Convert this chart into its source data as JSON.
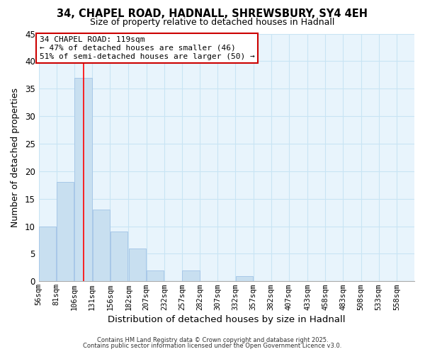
{
  "title_line1": "34, CHAPEL ROAD, HADNALL, SHREWSBURY, SY4 4EH",
  "title_line2": "Size of property relative to detached houses in Hadnall",
  "xlabel": "Distribution of detached houses by size in Hadnall",
  "ylabel": "Number of detached properties",
  "bin_labels": [
    "56sqm",
    "81sqm",
    "106sqm",
    "131sqm",
    "156sqm",
    "182sqm",
    "207sqm",
    "232sqm",
    "257sqm",
    "282sqm",
    "307sqm",
    "332sqm",
    "357sqm",
    "382sqm",
    "407sqm",
    "433sqm",
    "458sqm",
    "483sqm",
    "508sqm",
    "533sqm",
    "558sqm"
  ],
  "bin_edges": [
    56,
    81,
    106,
    131,
    156,
    182,
    207,
    232,
    257,
    282,
    307,
    332,
    357,
    382,
    407,
    433,
    458,
    483,
    508,
    533,
    558,
    583
  ],
  "bar_values": [
    10,
    18,
    37,
    13,
    9,
    6,
    2,
    0,
    2,
    0,
    0,
    1,
    0,
    0,
    0,
    0,
    0,
    0,
    0,
    0,
    0
  ],
  "bar_color": "#c8dff0",
  "bar_edge_color": "#a8c8e8",
  "grid_color": "#c8e4f4",
  "background_color": "#e8f4fc",
  "red_line_x": 119,
  "annotation_text": "34 CHAPEL ROAD: 119sqm\n← 47% of detached houses are smaller (46)\n51% of semi-detached houses are larger (50) →",
  "annotation_box_color": "#ffffff",
  "annotation_box_edge": "#cc0000",
  "ylim": [
    0,
    45
  ],
  "yticks": [
    0,
    5,
    10,
    15,
    20,
    25,
    30,
    35,
    40,
    45
  ],
  "footnote1": "Contains HM Land Registry data © Crown copyright and database right 2025.",
  "footnote2": "Contains public sector information licensed under the Open Government Licence v3.0."
}
